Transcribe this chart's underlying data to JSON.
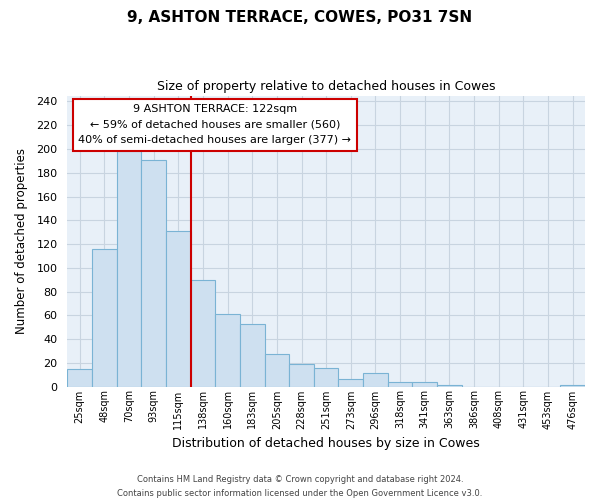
{
  "title": "9, ASHTON TERRACE, COWES, PO31 7SN",
  "subtitle": "Size of property relative to detached houses in Cowes",
  "xlabel": "Distribution of detached houses by size in Cowes",
  "ylabel": "Number of detached properties",
  "bar_labels": [
    "25sqm",
    "48sqm",
    "70sqm",
    "93sqm",
    "115sqm",
    "138sqm",
    "160sqm",
    "183sqm",
    "205sqm",
    "228sqm",
    "251sqm",
    "273sqm",
    "296sqm",
    "318sqm",
    "341sqm",
    "363sqm",
    "386sqm",
    "408sqm",
    "431sqm",
    "453sqm",
    "476sqm"
  ],
  "bar_values": [
    15,
    116,
    198,
    191,
    131,
    90,
    61,
    53,
    27,
    19,
    16,
    6,
    11,
    4,
    4,
    1,
    0,
    0,
    0,
    0,
    1
  ],
  "bar_color": "#cee0f0",
  "bar_edge_color": "#7ab3d4",
  "vline_x": 4.5,
  "vline_color": "#cc0000",
  "ylim": [
    0,
    245
  ],
  "yticks": [
    0,
    20,
    40,
    60,
    80,
    100,
    120,
    140,
    160,
    180,
    200,
    220,
    240
  ],
  "annotation_title": "9 ASHTON TERRACE: 122sqm",
  "annotation_line1": "← 59% of detached houses are smaller (560)",
  "annotation_line2": "40% of semi-detached houses are larger (377) →",
  "annotation_box_color": "#ffffff",
  "annotation_box_edge": "#cc0000",
  "footer_line1": "Contains HM Land Registry data © Crown copyright and database right 2024.",
  "footer_line2": "Contains public sector information licensed under the Open Government Licence v3.0.",
  "background_color": "#ffffff",
  "plot_bg_color": "#e8f0f8",
  "grid_color": "#c8d4e0"
}
